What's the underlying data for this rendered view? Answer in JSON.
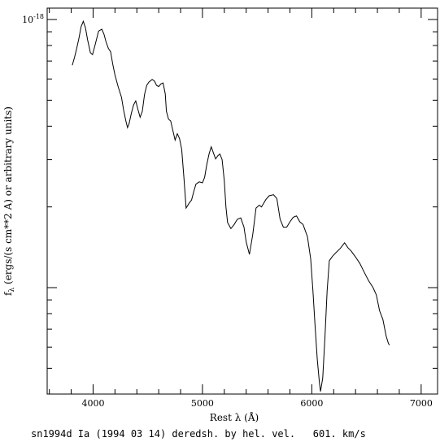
{
  "chart_data": {
    "type": "line",
    "xlabel": "Rest λ (Å)",
    "ylabel": "f_λ (ergs/(s cm**2 A) or arbitrary units)",
    "ylabel_base": "f",
    "ylabel_sub": "λ",
    "ylabel_rest": " (ergs/(s cm**2 A) or arbitrary units)",
    "y_tick_label": {
      "base": "10",
      "exp": "-18"
    },
    "xlim": [
      3580,
      7150
    ],
    "log_y": true,
    "x_ticks": [
      {
        "value": 4000,
        "label": "4000"
      },
      {
        "value": 5000,
        "label": "5000"
      },
      {
        "value": 6000,
        "label": "6000"
      },
      {
        "value": 7000,
        "label": "7000"
      }
    ],
    "caption": "sn1994d Ia (1994 03 14) deredsh. by hel. vel.   601. km/s",
    "series": [
      {
        "values": [
          [
            3810,
            0.675
          ],
          [
            3830,
            0.722
          ],
          [
            3850,
            0.78
          ],
          [
            3870,
            0.85
          ],
          [
            3890,
            0.94
          ],
          [
            3910,
            0.985
          ],
          [
            3930,
            0.93
          ],
          [
            3950,
            0.84
          ],
          [
            3975,
            0.753
          ],
          [
            3995,
            0.74
          ],
          [
            4020,
            0.81
          ],
          [
            4050,
            0.905
          ],
          [
            4080,
            0.92
          ],
          [
            4100,
            0.88
          ],
          [
            4120,
            0.82
          ],
          [
            4140,
            0.78
          ],
          [
            4160,
            0.758
          ],
          [
            4180,
            0.68
          ],
          [
            4200,
            0.62
          ],
          [
            4230,
            0.56
          ],
          [
            4260,
            0.512
          ],
          [
            4280,
            0.457
          ],
          [
            4300,
            0.418
          ],
          [
            4315,
            0.395
          ],
          [
            4330,
            0.41
          ],
          [
            4350,
            0.447
          ],
          [
            4370,
            0.48
          ],
          [
            4390,
            0.497
          ],
          [
            4410,
            0.462
          ],
          [
            4430,
            0.432
          ],
          [
            4450,
            0.455
          ],
          [
            4470,
            0.525
          ],
          [
            4490,
            0.568
          ],
          [
            4510,
            0.584
          ],
          [
            4540,
            0.598
          ],
          [
            4560,
            0.59
          ],
          [
            4580,
            0.568
          ],
          [
            4600,
            0.562
          ],
          [
            4620,
            0.575
          ],
          [
            4640,
            0.58
          ],
          [
            4660,
            0.528
          ],
          [
            4670,
            0.455
          ],
          [
            4690,
            0.425
          ],
          [
            4710,
            0.418
          ],
          [
            4730,
            0.385
          ],
          [
            4750,
            0.355
          ],
          [
            4770,
            0.375
          ],
          [
            4790,
            0.36
          ],
          [
            4810,
            0.328
          ],
          [
            4830,
            0.258
          ],
          [
            4850,
            0.198
          ],
          [
            4880,
            0.207
          ],
          [
            4900,
            0.212
          ],
          [
            4920,
            0.228
          ],
          [
            4940,
            0.243
          ],
          [
            4970,
            0.248
          ],
          [
            5000,
            0.246
          ],
          [
            5020,
            0.258
          ],
          [
            5040,
            0.288
          ],
          [
            5060,
            0.315
          ],
          [
            5080,
            0.335
          ],
          [
            5100,
            0.318
          ],
          [
            5120,
            0.302
          ],
          [
            5140,
            0.31
          ],
          [
            5160,
            0.315
          ],
          [
            5180,
            0.3
          ],
          [
            5200,
            0.25
          ],
          [
            5215,
            0.2
          ],
          [
            5230,
            0.175
          ],
          [
            5260,
            0.166
          ],
          [
            5290,
            0.172
          ],
          [
            5320,
            0.18
          ],
          [
            5350,
            0.182
          ],
          [
            5380,
            0.168
          ],
          [
            5400,
            0.148
          ],
          [
            5430,
            0.133
          ],
          [
            5460,
            0.158
          ],
          [
            5490,
            0.198
          ],
          [
            5520,
            0.203
          ],
          [
            5540,
            0.2
          ],
          [
            5580,
            0.213
          ],
          [
            5610,
            0.22
          ],
          [
            5650,
            0.222
          ],
          [
            5680,
            0.215
          ],
          [
            5710,
            0.18
          ],
          [
            5740,
            0.168
          ],
          [
            5770,
            0.168
          ],
          [
            5800,
            0.176
          ],
          [
            5830,
            0.183
          ],
          [
            5860,
            0.185
          ],
          [
            5890,
            0.176
          ],
          [
            5920,
            0.172
          ],
          [
            5960,
            0.155
          ],
          [
            5990,
            0.128
          ],
          [
            6010,
            0.098
          ],
          [
            6030,
            0.072
          ],
          [
            6050,
            0.054
          ],
          [
            6070,
            0.044
          ],
          [
            6080,
            0.041
          ],
          [
            6100,
            0.046
          ],
          [
            6120,
            0.065
          ],
          [
            6140,
            0.097
          ],
          [
            6160,
            0.126
          ],
          [
            6190,
            0.131
          ],
          [
            6220,
            0.135
          ],
          [
            6260,
            0.14
          ],
          [
            6300,
            0.147
          ],
          [
            6330,
            0.141
          ],
          [
            6360,
            0.137
          ],
          [
            6400,
            0.13
          ],
          [
            6440,
            0.123
          ],
          [
            6480,
            0.114
          ],
          [
            6520,
            0.106
          ],
          [
            6560,
            0.1
          ],
          [
            6590,
            0.094
          ],
          [
            6620,
            0.082
          ],
          [
            6650,
            0.076
          ],
          [
            6680,
            0.066
          ],
          [
            6700,
            0.062
          ],
          [
            6710,
            0.061
          ]
        ]
      }
    ]
  }
}
